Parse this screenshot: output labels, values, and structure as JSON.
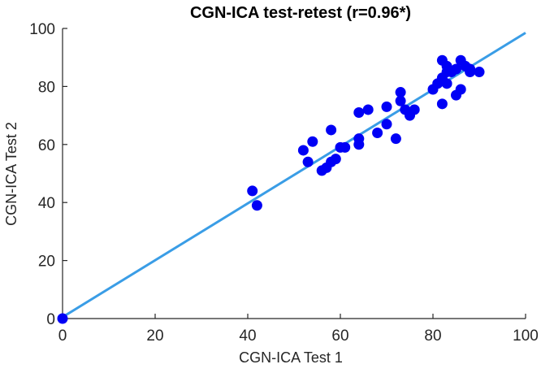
{
  "chart_data": {
    "type": "scatter",
    "title": "CGN-ICA test-retest (r=0.96*)",
    "xlabel": "CGN-ICA Test 1",
    "ylabel": "CGN-ICA Test 2",
    "xlim": [
      0,
      100
    ],
    "ylim": [
      0,
      100
    ],
    "xticks": [
      0,
      20,
      40,
      60,
      80,
      100
    ],
    "yticks": [
      0,
      20,
      40,
      60,
      80,
      100
    ],
    "xtick_labels": [
      "0",
      "20",
      "40",
      "60",
      "80",
      "100"
    ],
    "ytick_labels": [
      "0",
      "20",
      "40",
      "60",
      "80",
      "100"
    ],
    "grid": false,
    "colors": {
      "points": "#0000f5",
      "fit_line": "#3a9de6",
      "axes": "#262626"
    },
    "series": [
      {
        "type": "scatter",
        "points": [
          [
            0,
            0
          ],
          [
            41,
            44
          ],
          [
            42,
            39
          ],
          [
            52,
            58
          ],
          [
            53,
            54
          ],
          [
            54,
            61
          ],
          [
            56,
            51
          ],
          [
            57,
            52
          ],
          [
            58,
            54
          ],
          [
            58,
            65
          ],
          [
            59,
            55
          ],
          [
            60,
            59
          ],
          [
            61,
            59
          ],
          [
            64,
            60
          ],
          [
            64,
            62
          ],
          [
            64,
            71
          ],
          [
            66,
            72
          ],
          [
            68,
            64
          ],
          [
            70,
            67
          ],
          [
            70,
            73
          ],
          [
            72,
            62
          ],
          [
            73,
            75
          ],
          [
            73,
            78
          ],
          [
            74,
            72
          ],
          [
            75,
            70
          ],
          [
            76,
            72
          ],
          [
            80,
            79
          ],
          [
            81,
            81
          ],
          [
            82,
            89
          ],
          [
            82,
            83
          ],
          [
            82,
            74
          ],
          [
            83,
            81
          ],
          [
            83,
            85
          ],
          [
            83,
            87
          ],
          [
            84,
            85
          ],
          [
            85,
            77
          ],
          [
            85,
            86
          ],
          [
            86,
            79
          ],
          [
            86,
            89
          ],
          [
            87,
            87
          ],
          [
            88,
            86
          ],
          [
            88,
            85
          ],
          [
            90,
            85
          ]
        ]
      },
      {
        "type": "line",
        "points": [
          [
            0,
            0.5
          ],
          [
            100,
            98.5
          ]
        ]
      }
    ]
  }
}
